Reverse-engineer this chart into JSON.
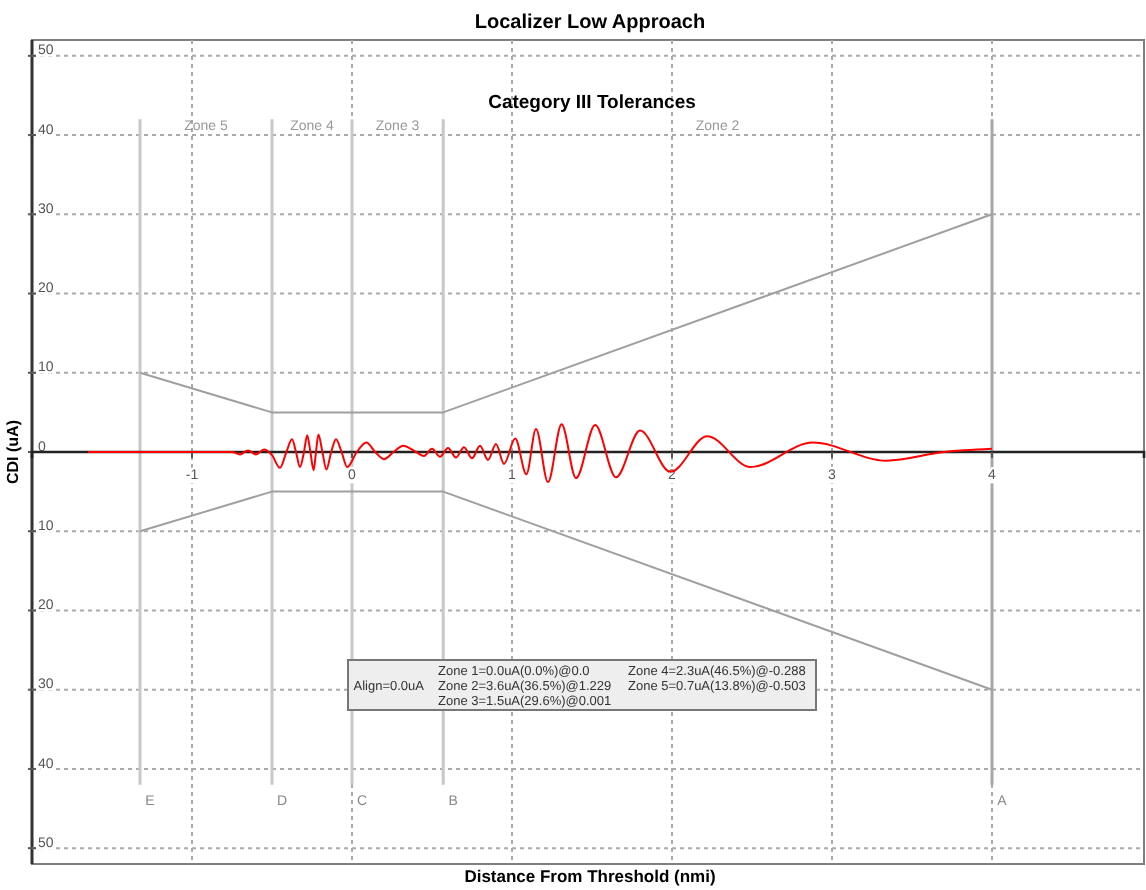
{
  "chart_data": {
    "type": "line",
    "title": "Localizer Low Approach",
    "subtitle": "Category III Tolerances",
    "xlabel": "Distance From Threshold (nmi)",
    "ylabel": "CDI (uA)",
    "xlim": [
      -2,
      4.95
    ],
    "ylim": [
      -52,
      52
    ],
    "xticks": [
      -1,
      0,
      1,
      2,
      3,
      4
    ],
    "yticks": [
      {
        "value": -50,
        "label": "50"
      },
      {
        "value": -40,
        "label": "40"
      },
      {
        "value": -30,
        "label": "30"
      },
      {
        "value": -20,
        "label": "20"
      },
      {
        "value": -10,
        "label": "10"
      },
      0,
      10,
      20,
      30,
      40,
      50
    ],
    "grid": true,
    "marker": "none",
    "series": [
      {
        "color": "#a0a0a0",
        "x": [
          -1.325,
          -0.5,
          0.57,
          4
        ],
        "values": [
          10,
          5,
          5,
          30
        ]
      },
      {
        "color": "#a0a0a0",
        "x": [
          -1.325,
          -0.5,
          0.57,
          4
        ],
        "values": [
          -10,
          -5,
          -5,
          -30
        ]
      },
      {
        "color": "#ff0000",
        "x": [
          -1.65,
          -0.75,
          -0.7,
          -0.65,
          -0.6,
          -0.55,
          -0.5,
          -0.45,
          -0.41,
          -0.375,
          -0.35,
          -0.325,
          -0.3,
          -0.28,
          -0.26,
          -0.24,
          -0.225,
          -0.21,
          -0.185,
          -0.16,
          -0.13,
          -0.1,
          -0.065,
          -0.03,
          0.03,
          0.09,
          0.145,
          0.2,
          0.26,
          0.32,
          0.4,
          0.45,
          0.5,
          0.55,
          0.6,
          0.65,
          0.7,
          0.75,
          0.8,
          0.85,
          0.9,
          0.95,
          1.02,
          1.09,
          1.15,
          1.225,
          1.31,
          1.4,
          1.52,
          1.65,
          1.8,
          1.99,
          2.22,
          2.49,
          2.88,
          3.34,
          3.7,
          4.0
        ],
        "values": [
          0,
          0,
          -0.3,
          0.2,
          -0.3,
          0.3,
          -0.4,
          -2,
          0,
          1.6,
          0,
          -1.9,
          0,
          2.1,
          0,
          -2.3,
          0,
          2.2,
          0,
          -2.2,
          0,
          1.6,
          0,
          -1.9,
          0,
          1.2,
          0,
          -0.9,
          0,
          0.8,
          0,
          -0.5,
          0.4,
          -0.6,
          0.5,
          -0.7,
          0.6,
          -0.8,
          0.8,
          -1.0,
          1.0,
          -1.5,
          1.7,
          -2.8,
          2.9,
          -3.8,
          3.5,
          -3.3,
          3.4,
          -3.2,
          2.7,
          -2.5,
          2.0,
          -1.9,
          1.2,
          -1.1,
          0,
          0.4
        ]
      }
    ],
    "ref_lines": [
      {
        "axis": "x",
        "value": -1.325,
        "label": "E",
        "color": "#c8c8c8"
      },
      {
        "axis": "x",
        "value": -0.5,
        "label": "D",
        "color": "#c8c8c8"
      },
      {
        "axis": "x",
        "value": 0,
        "label": "C",
        "color": "#c8c8c8"
      },
      {
        "axis": "x",
        "value": 0.57,
        "label": "B",
        "color": "#c8c8c8"
      },
      {
        "axis": "x",
        "value": 4,
        "label": "A",
        "color": "#a8a8a8"
      }
    ],
    "annotations": [
      "Zone 5",
      "Zone 4",
      "Zone 3",
      "Zone 2",
      "Align=0.0uA",
      "Zone 1=0.0uA(0.0%)@0.0",
      "Zone 2=3.6uA(36.5%)@1.229",
      "Zone 3=1.5uA(29.6%)@0.001",
      "Zone 4=2.3uA(46.5%)@-0.288",
      "Zone 5=0.7uA(13.8%)@-0.503"
    ]
  }
}
